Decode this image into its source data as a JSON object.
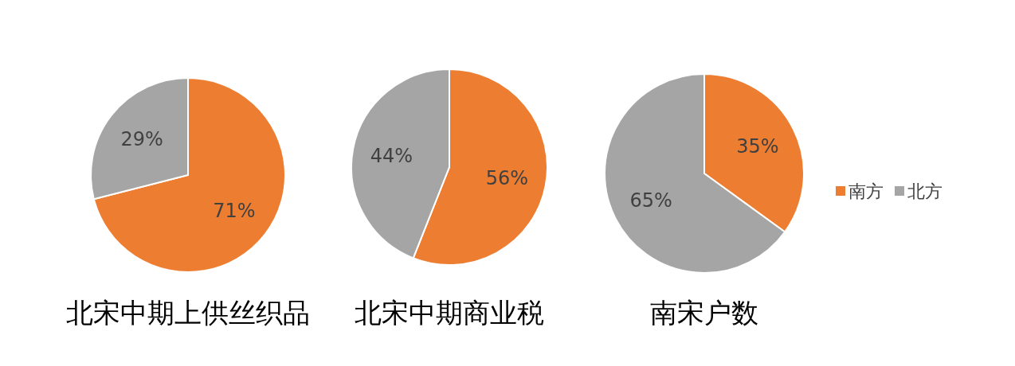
{
  "chart_data": [
    {
      "type": "pie",
      "title": "北宋中期上供丝织品",
      "categories": [
        null,
        null
      ],
      "values": [
        71,
        29
      ],
      "colors": [
        "#ed7d31",
        "#a5a5a5"
      ],
      "value_labels": [
        "71%",
        "29%"
      ],
      "legend": false
    },
    {
      "type": "pie",
      "title": "北宋中期商业税",
      "categories": [
        null,
        null
      ],
      "values": [
        56,
        44
      ],
      "colors": [
        "#ed7d31",
        "#a5a5a5"
      ],
      "value_labels": [
        "56%",
        "44%"
      ],
      "legend": false
    },
    {
      "type": "pie",
      "title": "南宋户数",
      "categories": [
        "南方",
        "北方"
      ],
      "values": [
        35,
        65
      ],
      "colors": [
        "#ed7d31",
        "#a5a5a5"
      ],
      "value_labels": [
        "35%",
        "65%"
      ],
      "legend": "right"
    }
  ]
}
